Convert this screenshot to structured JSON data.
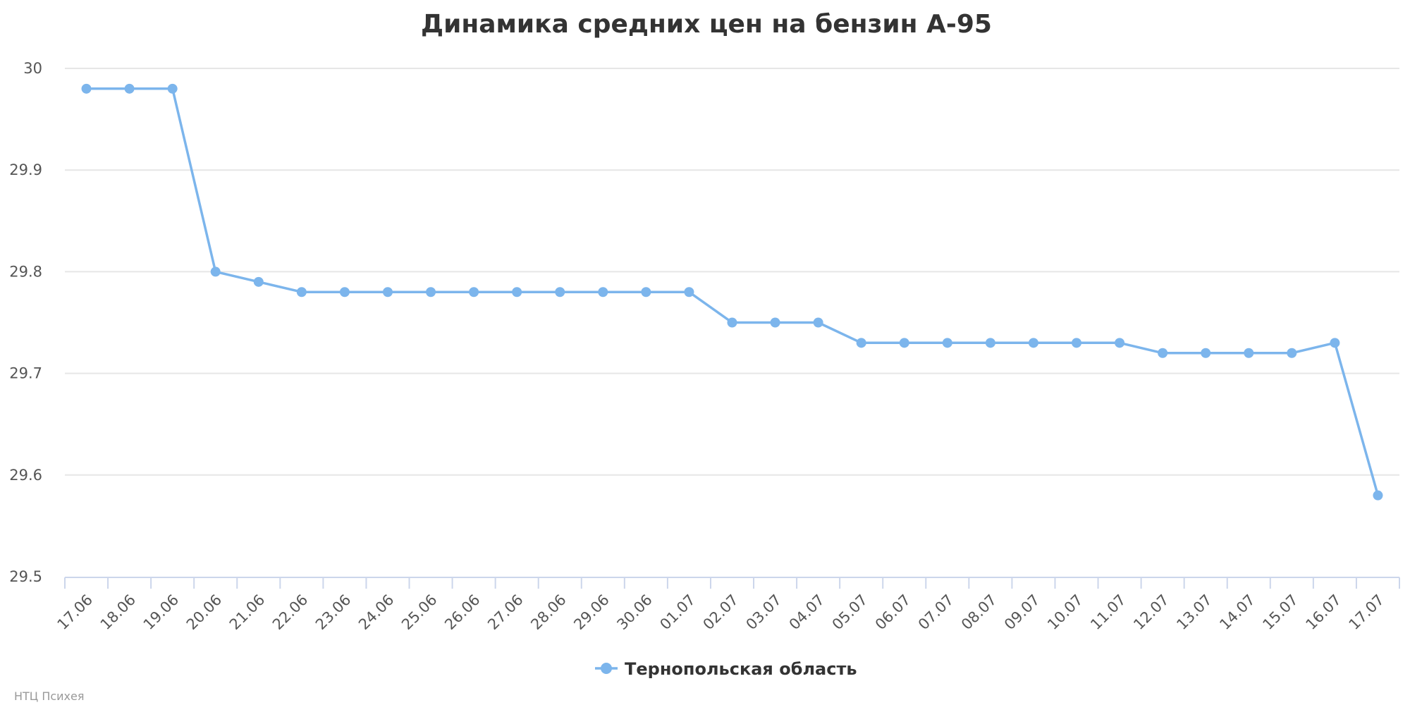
{
  "chart_data": {
    "type": "line",
    "title": "Динамика средних цен на бензин А-95",
    "xlabel": "",
    "ylabel": "",
    "ylim": [
      29.5,
      30
    ],
    "yticks": [
      "29.5",
      "29.6",
      "29.7",
      "29.8",
      "29.9",
      "30"
    ],
    "grid": true,
    "legend_position": "bottom-center",
    "categories": [
      "17.06",
      "18.06",
      "19.06",
      "20.06",
      "21.06",
      "22.06",
      "23.06",
      "24.06",
      "25.06",
      "26.06",
      "27.06",
      "28.06",
      "29.06",
      "30.06",
      "01.07",
      "02.07",
      "03.07",
      "04.07",
      "05.07",
      "06.07",
      "07.07",
      "08.07",
      "09.07",
      "10.07",
      "11.07",
      "12.07",
      "13.07",
      "14.07",
      "15.07",
      "16.07",
      "17.07"
    ],
    "series": [
      {
        "name": "Тернопольская область",
        "color": "#7cb5ec",
        "values": [
          29.98,
          29.98,
          29.98,
          29.8,
          29.79,
          29.78,
          29.78,
          29.78,
          29.78,
          29.78,
          29.78,
          29.78,
          29.78,
          29.78,
          29.78,
          29.75,
          29.75,
          29.75,
          29.73,
          29.73,
          29.73,
          29.73,
          29.73,
          29.73,
          29.73,
          29.72,
          29.72,
          29.72,
          29.72,
          29.73,
          29.58
        ]
      }
    ]
  },
  "credits": "НТЦ Психея"
}
